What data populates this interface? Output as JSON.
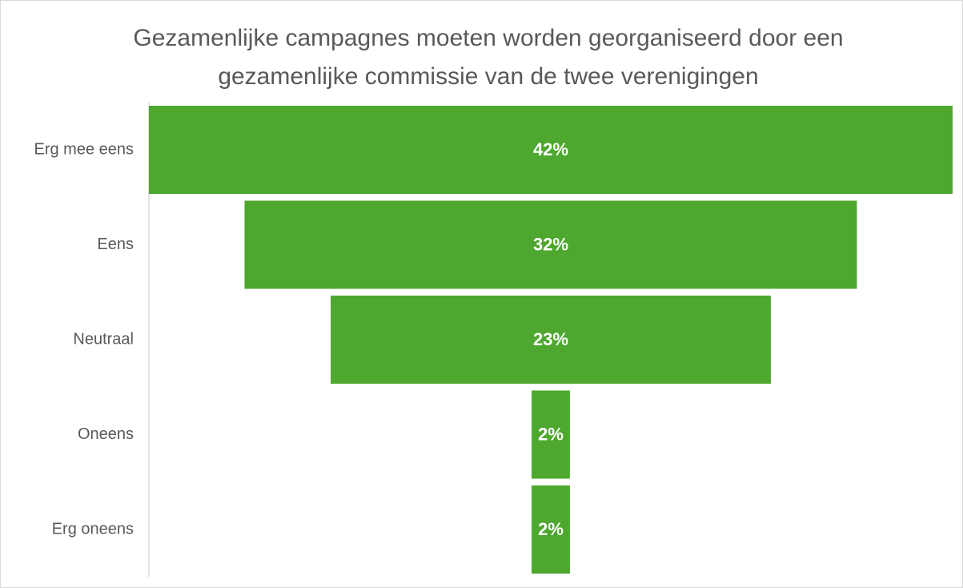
{
  "chart_data": {
    "type": "funnel",
    "title": "Gezamenlijke campagnes moeten worden georganiseerd door een gezamenlijke commissie van de twee verenigingen",
    "categories": [
      "Erg mee eens",
      "Eens",
      "Neutraal",
      "Oneens",
      "Erg oneens"
    ],
    "values": [
      42,
      32,
      23,
      2,
      2
    ],
    "value_labels": [
      "42%",
      "32%",
      "23%",
      "2%",
      "2%"
    ],
    "color": "#4ea72e"
  }
}
